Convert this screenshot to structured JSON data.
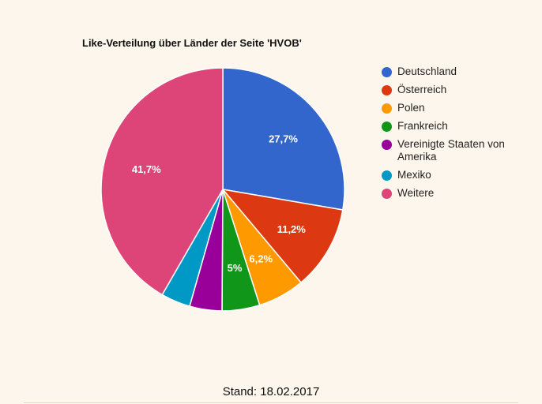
{
  "chart_data": {
    "type": "pie",
    "title": "Like-Verteilung über Länder der Seite 'HVOB'",
    "legend_position": "right",
    "slices": [
      {
        "name": "Deutschland",
        "value": 27.7,
        "label": "27,7%",
        "color": "#3366cc"
      },
      {
        "name": "Österreich",
        "value": 11.2,
        "label": "11,2%",
        "color": "#dc3912"
      },
      {
        "name": "Polen",
        "value": 6.2,
        "label": "6,2%",
        "color": "#ff9900"
      },
      {
        "name": "Frankreich",
        "value": 5.0,
        "label": "5%",
        "color": "#109618"
      },
      {
        "name": "Vereinigte Staaten von Amerika",
        "value": 4.3,
        "label": "",
        "color": "#990099"
      },
      {
        "name": "Mexiko",
        "value": 3.9,
        "label": "",
        "color": "#0099c6"
      },
      {
        "name": "Weitere",
        "value": 41.7,
        "label": "41,7%",
        "color": "#dd4477"
      }
    ]
  },
  "footer": "Stand: 18.02.2017"
}
